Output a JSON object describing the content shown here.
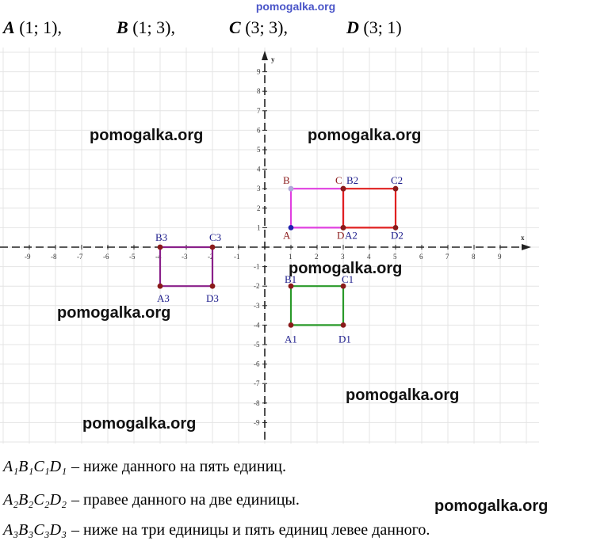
{
  "site_header": "pomogalka.org",
  "points_line": [
    {
      "name": "A",
      "coords": "(1; 1),"
    },
    {
      "name": "B",
      "coords": "(1; 3),"
    },
    {
      "name": "C",
      "coords": "(3; 3),"
    },
    {
      "name": "D",
      "coords": "(3; 1)"
    }
  ],
  "axes": {
    "x_label": "x",
    "y_label": "y",
    "x_ticks": [
      "-9",
      "-8",
      "-7",
      "-6",
      "-5",
      "-4",
      "-3",
      "-2",
      "-1",
      "1",
      "2",
      "3",
      "4",
      "5",
      "6",
      "7",
      "8",
      "9"
    ],
    "y_ticks": [
      "9",
      "8",
      "7",
      "6",
      "5",
      "4",
      "3",
      "2",
      "1",
      "-1",
      "-2",
      "-3",
      "-4",
      "-5",
      "-6",
      "-7",
      "-8",
      "-9"
    ]
  },
  "rectangles": [
    {
      "name": "ABCD",
      "color": "#e040e0",
      "labels": [
        "A",
        "B",
        "C",
        "D"
      ],
      "points": [
        [
          1,
          1
        ],
        [
          1,
          3
        ],
        [
          3,
          3
        ],
        [
          3,
          1
        ]
      ]
    },
    {
      "name": "A2B2C2D2",
      "color": "#e02020",
      "labels": [
        "A2",
        "B2",
        "C2",
        "D2"
      ],
      "points": [
        [
          3,
          1
        ],
        [
          3,
          3
        ],
        [
          5,
          3
        ],
        [
          5,
          1
        ]
      ]
    },
    {
      "name": "A1B1C1D1",
      "color": "#2a9a2a",
      "labels": [
        "A1",
        "B1",
        "C1",
        "D1"
      ],
      "points": [
        [
          1,
          -4
        ],
        [
          1,
          -2
        ],
        [
          3,
          -2
        ],
        [
          3,
          -4
        ]
      ]
    },
    {
      "name": "A3B3C3D3",
      "color": "#8a208a",
      "labels": [
        "A3",
        "B3",
        "C3",
        "D3"
      ],
      "points": [
        [
          -4,
          -2
        ],
        [
          -4,
          0
        ],
        [
          -2,
          0
        ],
        [
          -2,
          -2
        ]
      ]
    }
  ],
  "watermarks": [
    "pomogalka.org",
    "pomogalka.org",
    "pomogalka.org",
    "pomogalka.org",
    "pomogalka.org",
    "pomogalka.org",
    "pomogalka.org"
  ],
  "descriptions": [
    {
      "eq": "A₁B₁C₁D₁",
      "text": "– ниже данного на пять единиц."
    },
    {
      "eq": "A₂B₂C₂D₂",
      "text": "– правее данного на две единицы."
    },
    {
      "eq": "A₃B₃C₃D₃",
      "text": "– ниже на три единицы и пять единиц левее данного."
    }
  ]
}
